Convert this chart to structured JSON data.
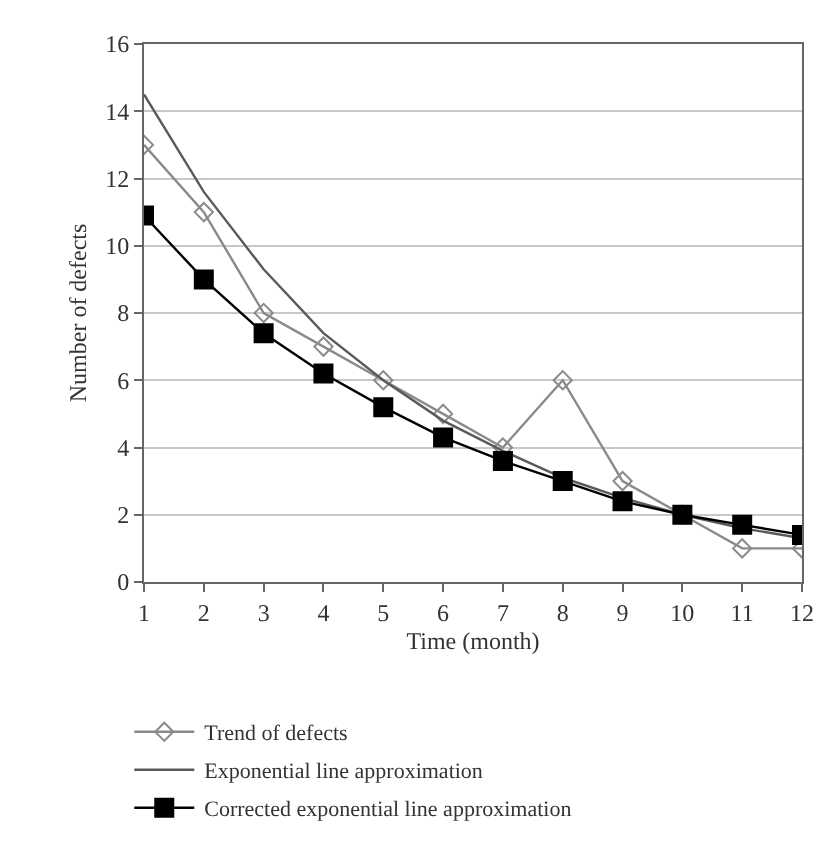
{
  "chart_data": {
    "type": "line",
    "xlabel": "Time (month)",
    "ylabel": "Number of defects",
    "x": [
      1,
      2,
      3,
      4,
      5,
      6,
      7,
      8,
      9,
      10,
      11,
      12
    ],
    "xlim": [
      1,
      12
    ],
    "xticks": [
      1,
      2,
      3,
      4,
      5,
      6,
      7,
      8,
      9,
      10,
      11,
      12
    ],
    "ylim": [
      0,
      16
    ],
    "yticks": [
      0,
      2,
      4,
      6,
      8,
      10,
      12,
      14,
      16
    ],
    "grid": "y",
    "legend": "bottom",
    "series": [
      {
        "name": "Trend of defects",
        "color": "#8a8a8a",
        "marker": "diamond",
        "values": [
          13,
          11,
          8,
          7,
          6,
          5,
          4,
          6,
          3,
          2,
          1,
          1
        ]
      },
      {
        "name": "Exponential line approximation",
        "color": "#5a5a5a",
        "marker": "none",
        "values": [
          14.5,
          11.6,
          9.3,
          7.4,
          6,
          4.8,
          3.9,
          3.1,
          2.5,
          2,
          1.6,
          1.3
        ]
      },
      {
        "name": "Corrected exponential line approximation",
        "color": "#000000",
        "marker": "square",
        "values": [
          10.9,
          9,
          7.4,
          6.2,
          5.2,
          4.3,
          3.6,
          3,
          2.4,
          2,
          1.7,
          1.4
        ]
      }
    ]
  }
}
